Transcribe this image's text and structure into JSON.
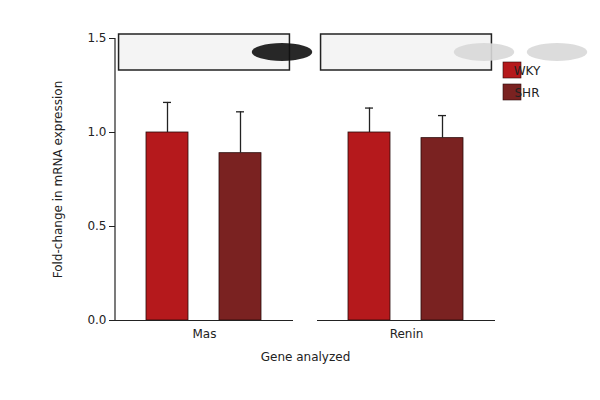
{
  "chart_data": {
    "type": "bar",
    "x_label": "Gene analyzed",
    "y_label": "Fold-change in mRNA expression",
    "categories": [
      "Mas",
      "Renin"
    ],
    "series": [
      {
        "name": "WKY",
        "color": "#b5191c",
        "values": [
          1.0,
          1.0
        ],
        "errors": [
          0.16,
          0.13
        ]
      },
      {
        "name": "SHR",
        "color": "#7a2221",
        "values": [
          0.89,
          0.97
        ],
        "errors": [
          0.22,
          0.12
        ]
      }
    ],
    "ylim": [
      0,
      1.5
    ],
    "yticks": [
      {
        "value": 0,
        "label": "0.0"
      },
      {
        "value": 0.5,
        "label": "0.5"
      },
      {
        "value": 1,
        "label": "1.0"
      },
      {
        "value": 1.5,
        "label": "1.5"
      }
    ],
    "grid": false,
    "legend": "top-right"
  }
}
